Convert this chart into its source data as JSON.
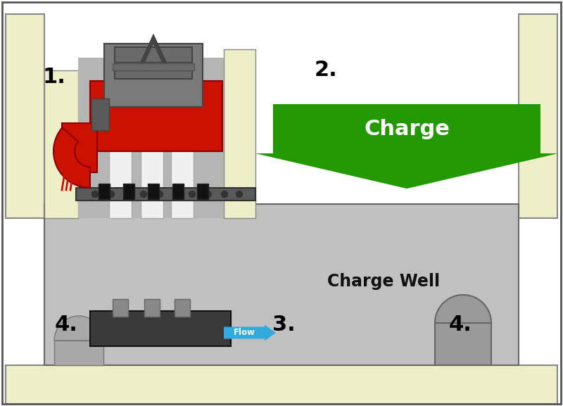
{
  "bg_color": "#ffffff",
  "well_fill": "#c0c0c0",
  "wall_fill": "#eeeec8",
  "pump_red": "#cc1100",
  "pump_gray_dark": "#555555",
  "pump_gray_med": "#888888",
  "pump_gray_light": "#aaaaaa",
  "arrow_green": "#229900",
  "arrow_blue": "#33aadd",
  "dark_box": "#3a3a3a",
  "label_color": "#000000",
  "label_1": "1.",
  "label_2": "2.",
  "label_3": "3.",
  "label_4a": "4.",
  "label_4b": "4.",
  "charge_text": "Charge",
  "well_text": "Charge Well",
  "flow_text": "Flow",
  "border_color": "#555555"
}
